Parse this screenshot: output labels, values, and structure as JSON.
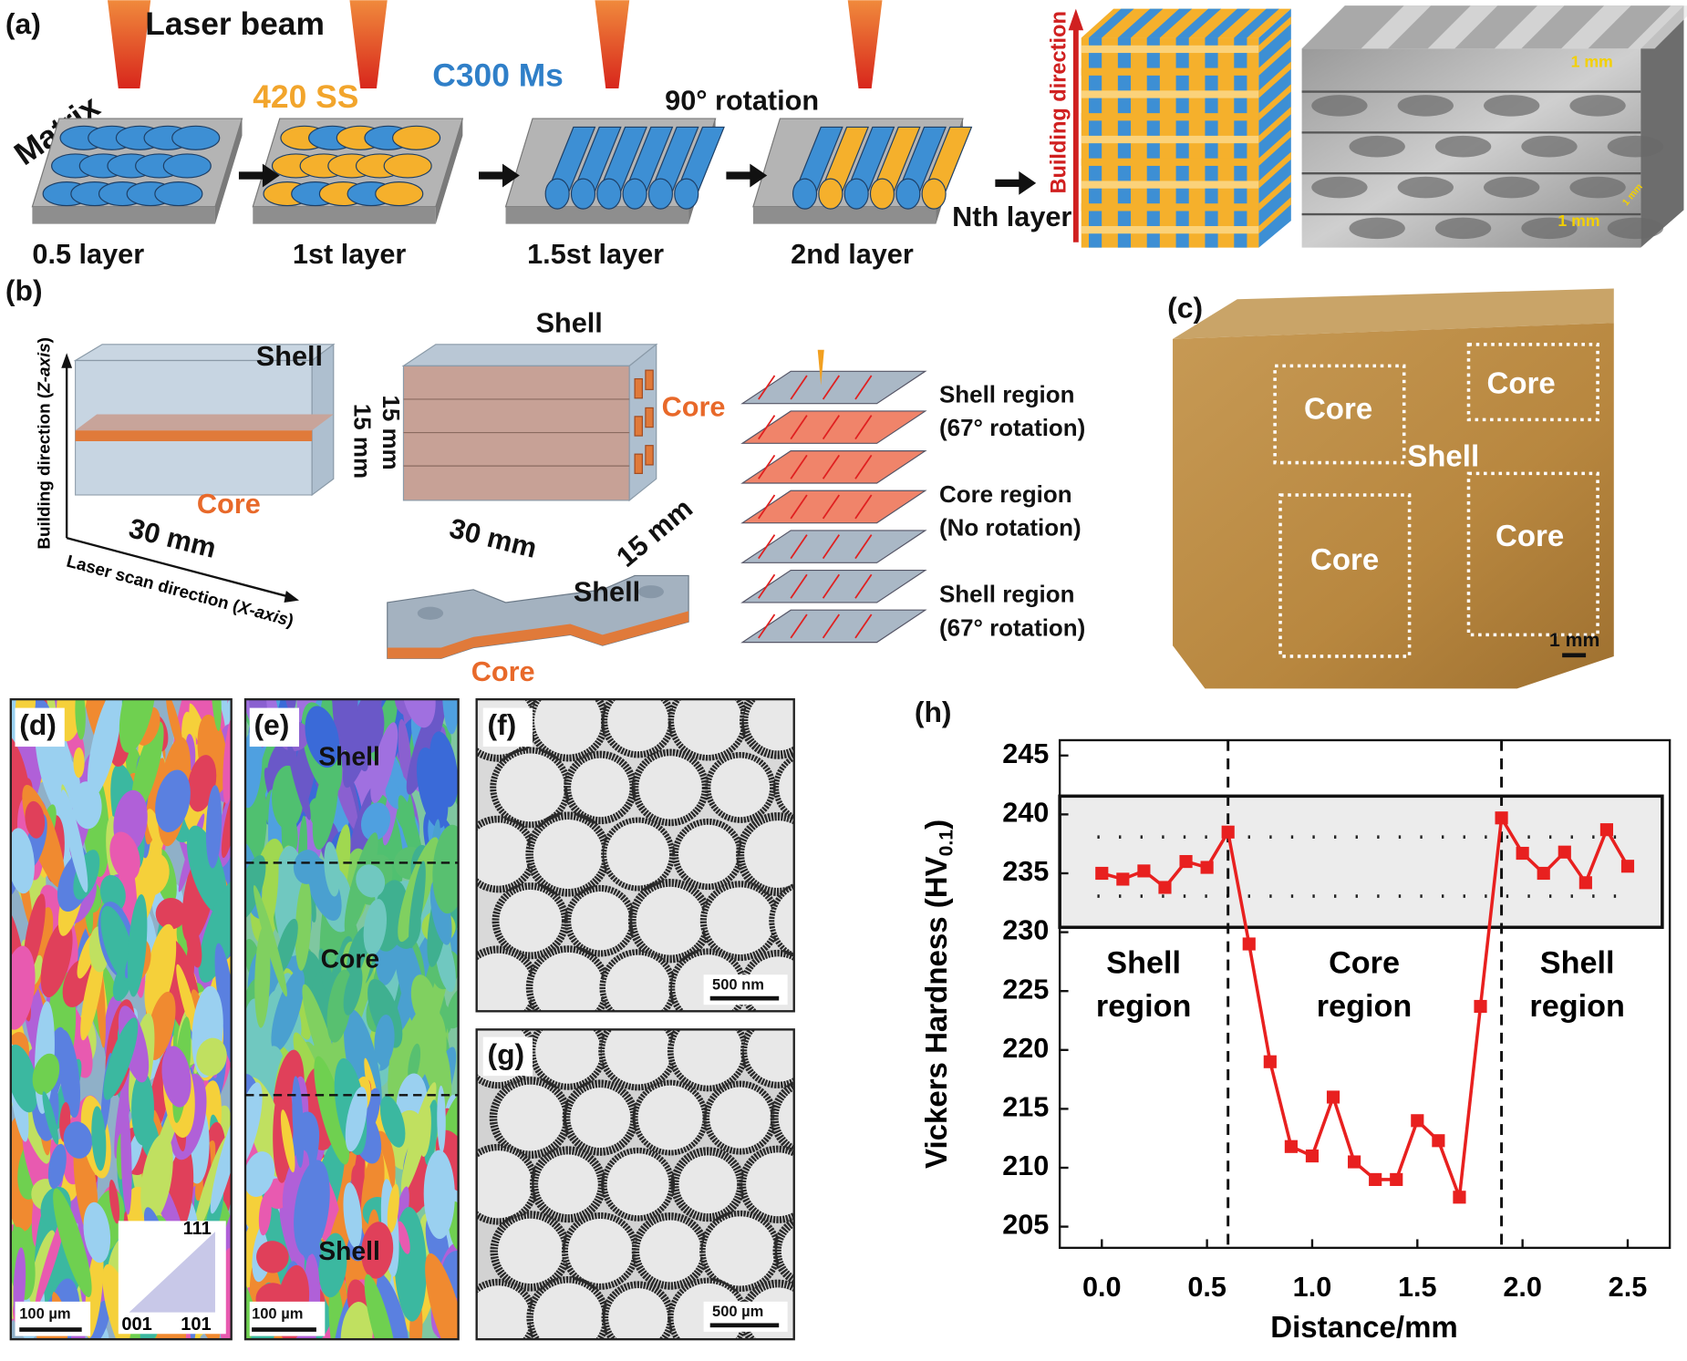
{
  "panel_a": {
    "label": "(a)",
    "laser": "Laser beam",
    "matrix": "Matrix",
    "ss": "420 SS",
    "ms": "C300 Ms",
    "rotation": "90° rotation",
    "layers": [
      "0.5 layer",
      "1st layer",
      "1.5st layer",
      "2nd layer",
      "Nth layer"
    ],
    "building": "Building direction",
    "scales": [
      "1 mm",
      "1 mm",
      "1 mm"
    ]
  },
  "panel_b": {
    "label": "(b)",
    "z_axis": {
      "text": "Building direction (",
      "italic": "Z-axis",
      "close": ")"
    },
    "x_axis": {
      "text": "Laser scan direction (",
      "italic": "X-axis",
      "close": ")"
    },
    "box1": {
      "shell": "Shell",
      "core": "Core",
      "length": "30 mm",
      "height": "15 mm"
    },
    "box2": {
      "shell": "Shell",
      "core": "Core",
      "height": "15 mm",
      "length": "30 mm",
      "depth": "15 mm"
    },
    "dogbone": {
      "shell": "Shell",
      "core": "Core"
    },
    "stack": [
      [
        "Shell region",
        "(67° rotation)"
      ],
      [
        "Core region",
        "(No rotation)"
      ],
      [
        "Shell region",
        "(67° rotation)"
      ]
    ]
  },
  "panel_c": {
    "label": "(c)",
    "cores": [
      "Core",
      "Core",
      "Core",
      "Core"
    ],
    "shell": "Shell",
    "scale": "1 mm"
  },
  "panel_d": {
    "label": "(d)",
    "key": [
      "111",
      "001",
      "101"
    ],
    "scale": "100 µm"
  },
  "panel_e": {
    "label": "(e)",
    "regions": [
      "Shell",
      "Core",
      "Shell"
    ],
    "scale": "100 µm"
  },
  "panel_f": {
    "label": "(f)",
    "scale": "500 nm"
  },
  "panel_g": {
    "label": "(g)",
    "scale": "500 µm"
  },
  "chart_data": {
    "type": "line",
    "label": "(h)",
    "xlabel": "Distance/mm",
    "ylabel": {
      "text": "Vickers Hardness (HV",
      "sub": "0.1",
      "close": ")"
    },
    "x": [
      0,
      0.1,
      0.2,
      0.3,
      0.4,
      0.5,
      0.6,
      0.7,
      0.8,
      0.9,
      1.0,
      1.1,
      1.2,
      1.3,
      1.4,
      1.5,
      1.6,
      1.7,
      1.8,
      1.9,
      2.0,
      2.1,
      2.2,
      2.3,
      2.4,
      2.5
    ],
    "series": [
      {
        "color": "#e8201f",
        "values": [
          235,
          234.5,
          235.2,
          233.8,
          236,
          235.5,
          238.5,
          229,
          219,
          211.8,
          211,
          216,
          210.5,
          209,
          209,
          214,
          212.3,
          207.5,
          223.7,
          239.7,
          236.7,
          235,
          236.8,
          234.2,
          238.7,
          235.6
        ]
      }
    ],
    "xlim": [
      -0.2,
      2.7
    ],
    "ylim": [
      203.2,
      246.3
    ],
    "xticks": [
      {
        "value": 0,
        "label": "0.0"
      },
      0.5,
      {
        "value": 1,
        "label": "1.0"
      },
      1.5,
      {
        "value": 2,
        "label": "2.0"
      },
      2.5
    ],
    "yticks": [
      205,
      210,
      215,
      220,
      225,
      230,
      235,
      240,
      245
    ],
    "vlines": [
      0.6,
      1.9
    ],
    "regions": [
      [
        "Shell",
        "region"
      ],
      [
        "Core",
        "region"
      ],
      [
        "Shell",
        "region"
      ]
    ]
  }
}
